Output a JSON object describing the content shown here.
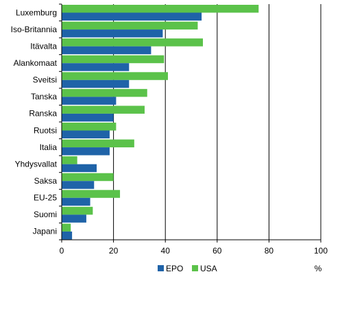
{
  "chart_data": {
    "type": "bar",
    "orientation": "horizontal",
    "categories": [
      "Luxemburg",
      "Iso-Britannia",
      "Itävalta",
      "Alankomaat",
      "Sveitsi",
      "Tanska",
      "Ranska",
      "Ruotsi",
      "Italia",
      "Yhdysvallat",
      "Saksa",
      "EU-25",
      "Suomi",
      "Japani"
    ],
    "series": [
      {
        "name": "USA",
        "color": "#5BC24A",
        "values": [
          76,
          52.5,
          54.5,
          39.5,
          41,
          33,
          32,
          21,
          28,
          6,
          20,
          22.5,
          12,
          3.5
        ]
      },
      {
        "name": "EPO",
        "color": "#1F63A8",
        "values": [
          54,
          39,
          34.5,
          26,
          26,
          21,
          20,
          18.5,
          18.5,
          13.5,
          12.5,
          11,
          9.5,
          4
        ]
      }
    ],
    "xlim": [
      0,
      100
    ],
    "xticks": [
      0,
      20,
      40,
      60,
      80,
      100
    ],
    "unit_label": "%",
    "grid": "vertical",
    "legend_position": "bottom"
  },
  "legend_order": [
    "EPO",
    "USA"
  ]
}
